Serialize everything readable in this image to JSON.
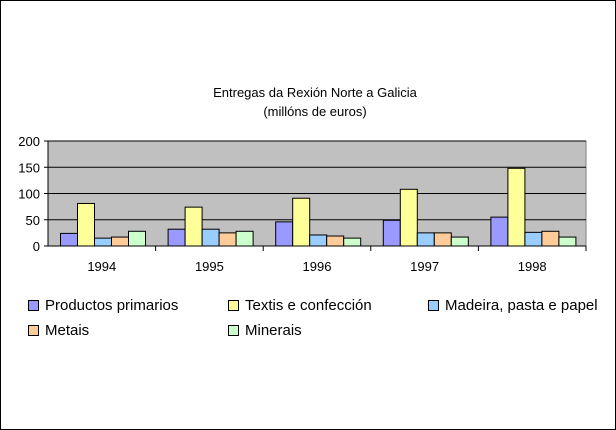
{
  "chart_data": {
    "type": "bar",
    "title": "Entregas da Rexión Norte a Galicia",
    "subtitle": "(millóns de euros)",
    "categories": [
      "1994",
      "1995",
      "1996",
      "1997",
      "1998"
    ],
    "ylim": [
      0,
      200
    ],
    "yticks": [
      "0",
      "50",
      "100",
      "150",
      "200"
    ],
    "grid": true,
    "legend_position": "bottom",
    "series": [
      {
        "name": "Productos primarios",
        "color": "#9999ff",
        "values": [
          24,
          32,
          46,
          49,
          55
        ]
      },
      {
        "name": "Textis e confección",
        "color": "#ffff99",
        "values": [
          81,
          74,
          91,
          108,
          148
        ]
      },
      {
        "name": "Madeira, pasta e papel",
        "color": "#99ccff",
        "values": [
          15,
          32,
          21,
          25,
          26
        ]
      },
      {
        "name": "Metais",
        "color": "#ffcc99",
        "values": [
          17,
          25,
          19,
          25,
          28
        ]
      },
      {
        "name": "Minerais",
        "color": "#ccffcc",
        "values": [
          28,
          28,
          15,
          17,
          17
        ]
      }
    ],
    "plot_background": "#c0c0c0"
  }
}
